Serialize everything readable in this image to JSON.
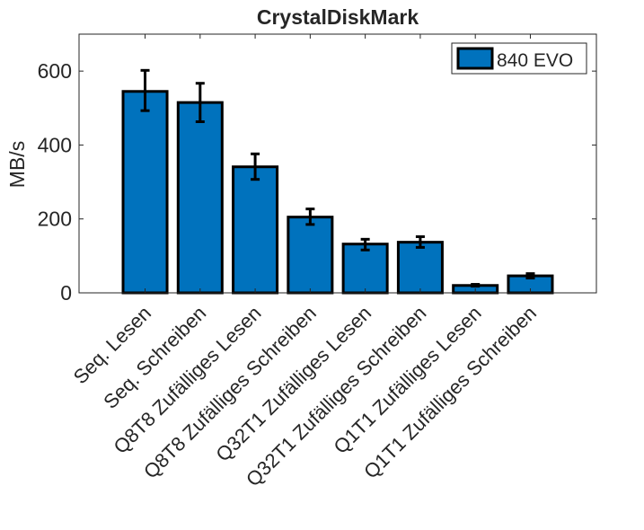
{
  "chart_data": {
    "type": "bar",
    "title": "CrystalDiskMark",
    "xlabel": "",
    "ylabel": "MB/s",
    "ylim": [
      0,
      700
    ],
    "xlim": [
      -0.2,
      9.2
    ],
    "yticks": [
      0,
      200,
      400,
      600
    ],
    "grid": false,
    "legend_position": "top-right",
    "categories": [
      "Seq. Lesen",
      "Seq. Schreiben",
      "Q8T8 Zufälliges Lesen",
      "Q8T8 Zufälliges Schreiben",
      "Q32T1 Zufälliges Lesen",
      "Q32T1 Zufälliges Schreiben",
      "Q1T1 Zufälliges Lesen",
      "Q1T1 Zufälliges Schreiben"
    ],
    "series": [
      {
        "name": "840 EVO",
        "color": "#0072BD",
        "values": [
          545,
          515,
          341,
          205,
          132,
          137,
          20,
          46
        ],
        "error_low": [
          493,
          463,
          307,
          185,
          116,
          123,
          18,
          40
        ],
        "error_high": [
          602,
          567,
          376,
          227,
          145,
          152,
          23,
          52
        ]
      }
    ]
  }
}
